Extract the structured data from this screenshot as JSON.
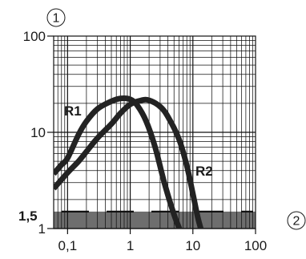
{
  "chart_data": {
    "type": "line",
    "x_scale": "log",
    "y_scale": "log",
    "xlim": [
      0.06,
      100
    ],
    "ylim": [
      1,
      100
    ],
    "x_ticks": [
      "0,1",
      "1",
      "10",
      "100"
    ],
    "x_tick_values": [
      0.1,
      1,
      10,
      100
    ],
    "y_ticks": [
      "1",
      "10",
      "100"
    ],
    "y_tick_values": [
      1,
      10,
      100
    ],
    "grid": true,
    "axis_markers": {
      "y_axis": "1",
      "x_axis": "2"
    },
    "threshold": {
      "value": 1.5,
      "label": "1,5",
      "shaded_below": true
    },
    "series": [
      {
        "name": "R1",
        "x": [
          0.06,
          0.08,
          0.1,
          0.15,
          0.2,
          0.3,
          0.5,
          0.7,
          1.0,
          1.3,
          1.8,
          2.5,
          3.5,
          5,
          6.5
        ],
        "y": [
          3.7,
          4.6,
          5.4,
          9.5,
          13,
          17.5,
          21,
          22.5,
          22,
          19,
          13,
          7,
          3,
          1.4,
          0.9
        ]
      },
      {
        "name": "R2",
        "x": [
          0.06,
          0.1,
          0.15,
          0.2,
          0.3,
          0.5,
          0.7,
          1.0,
          1.5,
          2.0,
          3.0,
          4.0,
          6.0,
          8.0,
          10.0,
          12.0,
          14.0
        ],
        "y": [
          2.6,
          3.8,
          5.0,
          6.3,
          8.7,
          12.2,
          15.8,
          19.5,
          21.5,
          21.5,
          18.5,
          14.5,
          8.5,
          4.5,
          2.3,
          1.3,
          0.9
        ]
      }
    ],
    "colors": {
      "curve": "#222222",
      "grid": "#111111",
      "band": "#6e6e6e",
      "text": "#1a1a1a"
    }
  }
}
